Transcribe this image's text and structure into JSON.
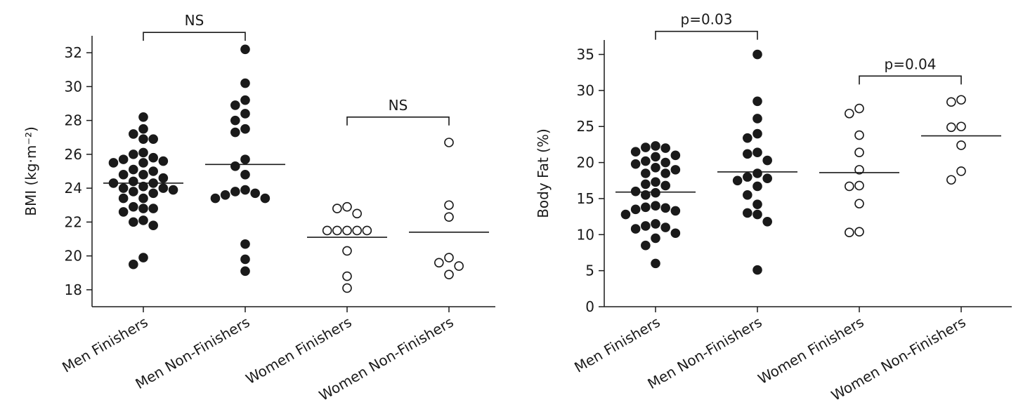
{
  "chart_data": [
    {
      "type": "dotplot",
      "ylabel": "BMI (kg·m⁻²)",
      "categories": [
        "Men Finishers",
        "Men Non-Finishers",
        "Women Finishers",
        "Women Non-Finishers"
      ],
      "values": [
        [
          28.2,
          27.5,
          27.2,
          26.9,
          26.9,
          26.1,
          26.0,
          25.8,
          25.7,
          25.6,
          25.5,
          25.5,
          25.1,
          25.0,
          24.8,
          24.8,
          24.6,
          24.4,
          24.3,
          24.3,
          24.1,
          24.0,
          24.0,
          23.9,
          23.8,
          23.7,
          23.4,
          23.4,
          22.9,
          22.8,
          22.8,
          22.6,
          22.1,
          22.0,
          21.8,
          19.9,
          19.5
        ],
        [
          32.2,
          30.2,
          29.2,
          28.9,
          28.4,
          28.0,
          27.5,
          27.3,
          25.7,
          25.3,
          24.8,
          23.9,
          23.8,
          23.7,
          23.6,
          23.4,
          23.4,
          20.7,
          19.8,
          19.1
        ],
        [
          22.9,
          22.8,
          22.5,
          21.5,
          21.5,
          21.5,
          21.5,
          21.5,
          20.3,
          18.8,
          18.1
        ],
        [
          26.7,
          23.0,
          22.3,
          19.9,
          19.6,
          19.4,
          18.9
        ]
      ],
      "means": [
        24.3,
        25.4,
        21.1,
        21.4
      ],
      "filled": [
        true,
        true,
        false,
        false
      ],
      "color": "#1a1a1a",
      "ylim": [
        17,
        33
      ],
      "yticks": [
        18,
        20,
        22,
        24,
        26,
        28,
        30,
        32
      ],
      "annotations": [
        {
          "text": "NS",
          "between": [
            0,
            1
          ],
          "y": 33.2
        },
        {
          "text": "NS",
          "between": [
            2,
            3
          ],
          "y": 28.2
        }
      ]
    },
    {
      "type": "dotplot",
      "ylabel": "Body Fat (%)",
      "categories": [
        "Men Finishers",
        "Men Non-Finishers",
        "Women Finishers",
        "Women Non-Finishers"
      ],
      "values": [
        [
          22.3,
          22.1,
          22.0,
          21.5,
          21.0,
          20.8,
          20.2,
          20.0,
          19.8,
          19.3,
          19.0,
          18.5,
          18.5,
          17.3,
          17.0,
          16.8,
          16.0,
          15.8,
          15.5,
          14.0,
          13.8,
          13.7,
          13.5,
          13.3,
          12.8,
          11.5,
          11.2,
          11.0,
          10.8,
          10.2,
          9.5,
          8.5,
          6.0
        ],
        [
          35.0,
          28.5,
          26.1,
          24.0,
          23.4,
          21.4,
          21.2,
          20.3,
          18.5,
          18.0,
          17.8,
          17.5,
          16.7,
          15.5,
          14.2,
          13.0,
          12.8,
          11.8,
          5.1
        ],
        [
          27.5,
          26.8,
          23.8,
          21.4,
          19.0,
          16.8,
          16.7,
          14.3,
          10.4,
          10.3
        ],
        [
          28.7,
          28.4,
          25.0,
          24.9,
          22.4,
          18.8,
          17.6
        ]
      ],
      "means": [
        15.9,
        18.7,
        18.6,
        23.7
      ],
      "filled": [
        true,
        true,
        false,
        false
      ],
      "color": "#1a1a1a",
      "ylim": [
        0,
        37
      ],
      "yticks": [
        0,
        5,
        10,
        15,
        20,
        25,
        30,
        35
      ],
      "annotations": [
        {
          "text": "p=0.03",
          "between": [
            0,
            1
          ],
          "y": 38.2
        },
        {
          "text": "p=0.04",
          "between": [
            2,
            3
          ],
          "y": 32.0
        }
      ]
    }
  ]
}
